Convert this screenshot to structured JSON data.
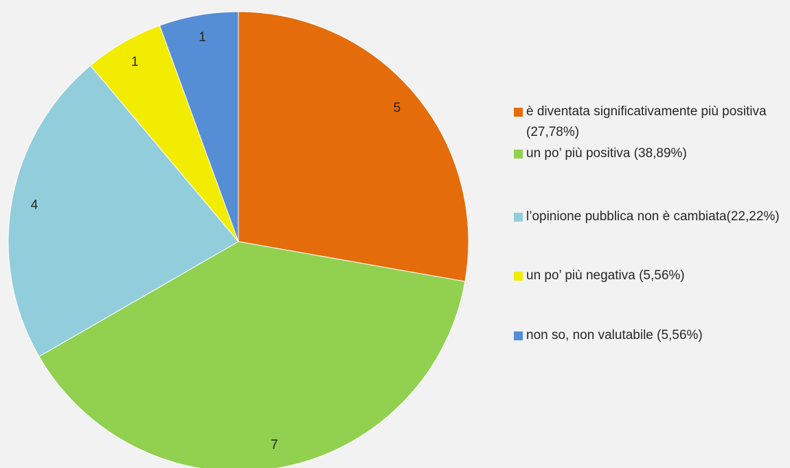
{
  "chart_data": {
    "type": "pie",
    "categories": [
      "è diventata significativamente più positiva (27,78%)",
      "un po’ più positiva (38,89%)",
      "l’opinione pubblica non è cambiata(22,22%)",
      "un po’ più negativa (5,56%)",
      "non so, non valutabile (5,56%)"
    ],
    "values": [
      5,
      7,
      4,
      1,
      1
    ],
    "colors": [
      "#e46c0a",
      "#92d050",
      "#92cddc",
      "#f2ec00",
      "#558ed5"
    ],
    "legend": "right"
  }
}
